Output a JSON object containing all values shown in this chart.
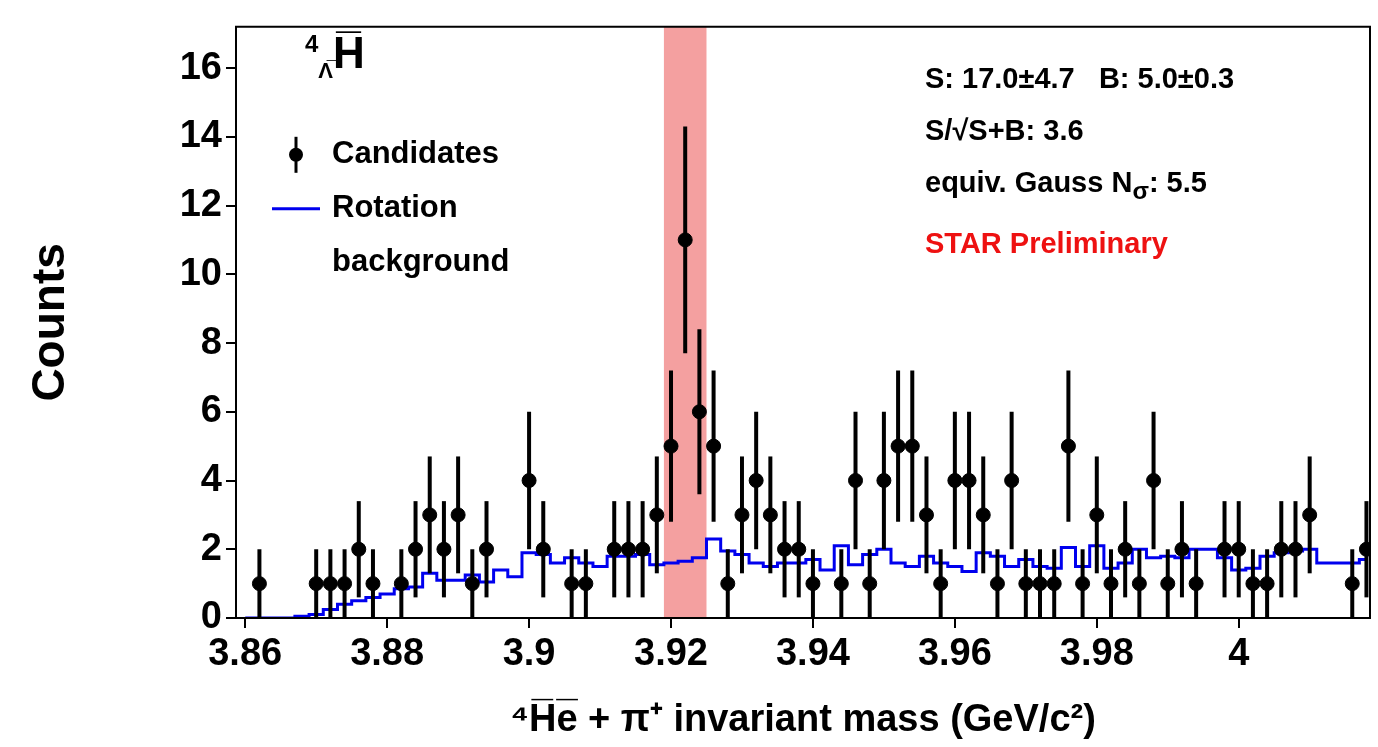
{
  "chart_data": {
    "type": "scatter",
    "xlabel": "⁴H̅e̅ + π⁺ invariant mass (GeV/c²)",
    "ylabel": "Counts",
    "legend_title": "$^{4}$$_{Λ̅}$H̅",
    "annotations": [
      "S: 17.0±4.7   B: 5.0±0.3",
      "S/√S+B: 3.6",
      "equiv. Gauss N$_{σ}$: 5.5",
      "STAR Preliminary"
    ],
    "xlim": [
      3.8587,
      4.0185
    ],
    "xticks": [
      3.86,
      3.88,
      3.9,
      3.92,
      3.94,
      3.96,
      3.98,
      4
    ],
    "ylim": [
      0,
      17.2
    ],
    "yticks": [
      0,
      2,
      4,
      6,
      8,
      10,
      12,
      14,
      16
    ],
    "grid": false,
    "legend": "top left",
    "bands": [
      {
        "axis": "x",
        "from": 3.919,
        "to": 3.925,
        "color": "#f4a0a0"
      }
    ],
    "series": [
      {
        "name": "Candidates",
        "type": "scatter",
        "marker": "circle",
        "color": "#000000",
        "x": [
          3.862,
          3.87,
          3.872,
          3.874,
          3.876,
          3.878,
          3.882,
          3.884,
          3.886,
          3.888,
          3.89,
          3.892,
          3.894,
          3.9,
          3.902,
          3.906,
          3.908,
          3.912,
          3.914,
          3.916,
          3.918,
          3.92,
          3.922,
          3.924,
          3.926,
          3.928,
          3.93,
          3.932,
          3.934,
          3.936,
          3.938,
          3.94,
          3.944,
          3.946,
          3.948,
          3.95,
          3.952,
          3.954,
          3.956,
          3.958,
          3.96,
          3.962,
          3.964,
          3.966,
          3.968,
          3.97,
          3.972,
          3.974,
          3.976,
          3.978,
          3.98,
          3.982,
          3.984,
          3.986,
          3.988,
          3.99,
          3.992,
          3.994,
          3.998,
          4.0,
          4.002,
          4.004,
          4.006,
          4.008,
          4.01,
          4.016,
          4.018
        ],
        "values": [
          1,
          1,
          1,
          1,
          2,
          1,
          1,
          2,
          3,
          2,
          3,
          1,
          2,
          4,
          2,
          1,
          1,
          2,
          2,
          2,
          3,
          5,
          11,
          6,
          5,
          1,
          3,
          4,
          3,
          2,
          2,
          1,
          1,
          4,
          1,
          4,
          5,
          5,
          3,
          1,
          4,
          4,
          3,
          1,
          4,
          1,
          1,
          1,
          5,
          1,
          3,
          1,
          2,
          1,
          4,
          1,
          2,
          1,
          2,
          2,
          1,
          1,
          2,
          2,
          3,
          1,
          2
        ],
        "errors": [
          1,
          1,
          1,
          1,
          1.4,
          1,
          1,
          1.4,
          1.7,
          1.4,
          1.7,
          1,
          1.4,
          2,
          1.4,
          1,
          1,
          1.4,
          1.4,
          1.4,
          1.7,
          2.2,
          3.3,
          2.4,
          2.2,
          1,
          1.7,
          2,
          1.7,
          1.4,
          1.4,
          1,
          1,
          2,
          1,
          2,
          2.2,
          2.2,
          1.7,
          1,
          2,
          2,
          1.7,
          1,
          2,
          1,
          1,
          1,
          2.2,
          1,
          1.7,
          1,
          1.4,
          1,
          2,
          1,
          1.4,
          1,
          1.4,
          1.4,
          1,
          1,
          1.4,
          1.4,
          1.7,
          1,
          1.4
        ]
      },
      {
        "name": "Rotation background",
        "type": "step",
        "color": "#0000ee",
        "x": [
          3.86,
          3.862,
          3.864,
          3.866,
          3.868,
          3.87,
          3.872,
          3.874,
          3.876,
          3.878,
          3.88,
          3.882,
          3.884,
          3.886,
          3.888,
          3.89,
          3.892,
          3.894,
          3.896,
          3.898,
          3.9,
          3.902,
          3.904,
          3.906,
          3.908,
          3.91,
          3.912,
          3.914,
          3.916,
          3.918,
          3.92,
          3.922,
          3.924,
          3.926,
          3.928,
          3.93,
          3.932,
          3.934,
          3.936,
          3.938,
          3.94,
          3.942,
          3.944,
          3.946,
          3.948,
          3.95,
          3.952,
          3.954,
          3.956,
          3.958,
          3.96,
          3.962,
          3.964,
          3.966,
          3.968,
          3.97,
          3.972,
          3.974,
          3.976,
          3.978,
          3.98,
          3.982,
          3.984,
          3.986,
          3.988,
          3.99,
          3.992,
          3.994,
          3.996,
          3.998,
          4.0,
          4.002,
          4.004,
          4.006,
          4.008,
          4.01,
          4.012,
          4.014,
          4.016,
          4.018
        ],
        "values": [
          0,
          0,
          0,
          0,
          0.05,
          0.1,
          0.25,
          0.4,
          0.5,
          0.6,
          0.7,
          0.85,
          0.9,
          1.3,
          1.1,
          1.1,
          1.25,
          1.05,
          1.4,
          1.2,
          1.9,
          1.85,
          1.6,
          1.75,
          1.6,
          1.5,
          1.8,
          1.8,
          1.85,
          1.55,
          1.6,
          1.65,
          1.75,
          2.3,
          1.95,
          1.85,
          1.6,
          1.5,
          1.6,
          1.6,
          1.7,
          1.4,
          2.1,
          1.55,
          1.85,
          2.0,
          1.6,
          1.5,
          1.8,
          1.6,
          1.5,
          1.35,
          1.9,
          1.8,
          1.5,
          1.7,
          1.5,
          1.45,
          2.05,
          1.5,
          2.1,
          1.45,
          1.6,
          2.0,
          1.75,
          1.8,
          1.75,
          2.0,
          2.0,
          1.75,
          1.4,
          1.45,
          1.8,
          1.9,
          1.95,
          2.0,
          1.6,
          1.6,
          1.6,
          1.7
        ]
      }
    ]
  }
}
